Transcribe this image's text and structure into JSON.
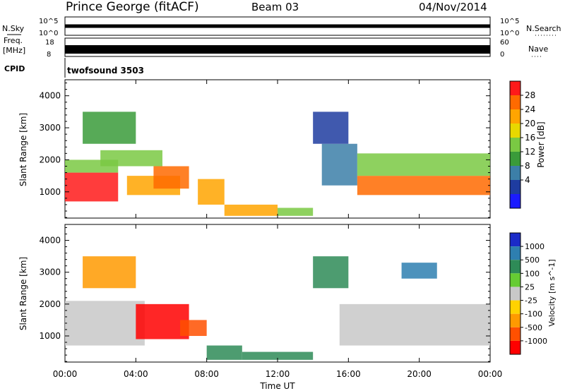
{
  "header": {
    "title": "Prince George (fitACF)",
    "beam": "Beam 03",
    "date": "04/Nov/2014"
  },
  "top_panels": {
    "nsky_label": "N.Sky",
    "nsky_ticks": [
      "10^5",
      "10^0"
    ],
    "nsearch_label": "N.Search",
    "nsearch_ticks": [
      "10^5",
      "10^0"
    ],
    "freq_label": "Freq.",
    "freq_unit": "[MHz]",
    "freq_ticks": [
      "18",
      "8"
    ],
    "nave_label": "Nave",
    "nave_ticks": [
      "60",
      "0"
    ],
    "cpid_label": "CPID",
    "cpid_value": "twofsound 3503"
  },
  "xaxis": {
    "label": "Time UT",
    "ticks": [
      "00:00",
      "04:00",
      "08:00",
      "12:00",
      "16:00",
      "20:00",
      "00:00"
    ]
  },
  "power_colorbar": {
    "label": "Power [dB]",
    "ticks": [
      "28",
      "24",
      "20",
      "16",
      "12",
      "8",
      "4"
    ],
    "colors": [
      "#ff1a1a",
      "#ff6a00",
      "#ffa500",
      "#e8d800",
      "#7ac943",
      "#3a9b3a",
      "#3c7fa8",
      "#1e3ca0",
      "#1b1bff"
    ]
  },
  "velocity_colorbar": {
    "label": "Velocity [m s^-1]",
    "ticks": [
      "1000",
      "500",
      "100",
      "25",
      "-25",
      "-100",
      "-500",
      "-1000"
    ],
    "colors": [
      "#1b2bc8",
      "#2e7fb0",
      "#2e8b57",
      "#66cc33",
      "#c8c8c8",
      "#ffd200",
      "#ff9a00",
      "#ff5000",
      "#ff0000"
    ]
  },
  "chart_data": [
    {
      "type": "heatmap",
      "title": "Power",
      "xlabel": "Time UT",
      "ylabel": "Slant Range [km]",
      "xlim": [
        0,
        24
      ],
      "ylim": [
        180,
        4500
      ],
      "yticks": [
        "1000",
        "2000",
        "3000",
        "4000"
      ],
      "colorbar_range_db": [
        0,
        30
      ],
      "regions": [
        {
          "t0": 0,
          "t1": 3,
          "r0": 700,
          "r1": 1600,
          "power_db": 27
        },
        {
          "t0": 0,
          "t1": 3,
          "r0": 1600,
          "r1": 2000,
          "power_db": 15
        },
        {
          "t0": 2,
          "t1": 5.5,
          "r0": 1800,
          "r1": 2300,
          "power_db": 14
        },
        {
          "t0": 3.5,
          "t1": 6.5,
          "r0": 900,
          "r1": 1500,
          "power_db": 22
        },
        {
          "t0": 5,
          "t1": 7,
          "r0": 1100,
          "r1": 1800,
          "power_db": 24
        },
        {
          "t0": 7.5,
          "t1": 9,
          "r0": 600,
          "r1": 1400,
          "power_db": 21
        },
        {
          "t0": 9,
          "t1": 12,
          "r0": 250,
          "r1": 600,
          "power_db": 22
        },
        {
          "t0": 12,
          "t1": 14,
          "r0": 250,
          "r1": 500,
          "power_db": 16
        },
        {
          "t0": 14.5,
          "t1": 16.5,
          "r0": 1200,
          "r1": 2500,
          "power_db": 10
        },
        {
          "t0": 16.5,
          "t1": 24,
          "r0": 900,
          "r1": 1500,
          "power_db": 24
        },
        {
          "t0": 16.5,
          "t1": 24,
          "r0": 1500,
          "r1": 2200,
          "power_db": 15
        },
        {
          "t0": 14,
          "t1": 16,
          "r0": 2500,
          "r1": 3500,
          "power_db": 6
        },
        {
          "t0": 1,
          "t1": 4,
          "r0": 2500,
          "r1": 3500,
          "power_db": 12
        }
      ]
    },
    {
      "type": "heatmap",
      "title": "Velocity",
      "xlabel": "Time UT",
      "ylabel": "Slant Range [km]",
      "xlim": [
        0,
        24
      ],
      "ylim": [
        180,
        4500
      ],
      "yticks": [
        "1000",
        "2000",
        "3000",
        "4000"
      ],
      "regions": [
        {
          "t0": 0,
          "t1": 4.5,
          "r0": 700,
          "r1": 2100,
          "velocity": 0
        },
        {
          "t0": 4,
          "t1": 7,
          "r0": 900,
          "r1": 2000,
          "velocity": -1000
        },
        {
          "t0": 6.5,
          "t1": 8,
          "r0": 1000,
          "r1": 1500,
          "velocity": -500
        },
        {
          "t0": 8,
          "t1": 10,
          "r0": 250,
          "r1": 700,
          "velocity": 100
        },
        {
          "t0": 10,
          "t1": 14,
          "r0": 250,
          "r1": 500,
          "velocity": 100
        },
        {
          "t0": 15.5,
          "t1": 24,
          "r0": 700,
          "r1": 2000,
          "velocity": 0
        },
        {
          "t0": 14,
          "t1": 16,
          "r0": 2500,
          "r1": 3500,
          "velocity": 100
        },
        {
          "t0": 19,
          "t1": 21,
          "r0": 2800,
          "r1": 3300,
          "velocity": 500
        },
        {
          "t0": 1,
          "t1": 4,
          "r0": 2500,
          "r1": 3500,
          "velocity": -100
        }
      ]
    }
  ]
}
